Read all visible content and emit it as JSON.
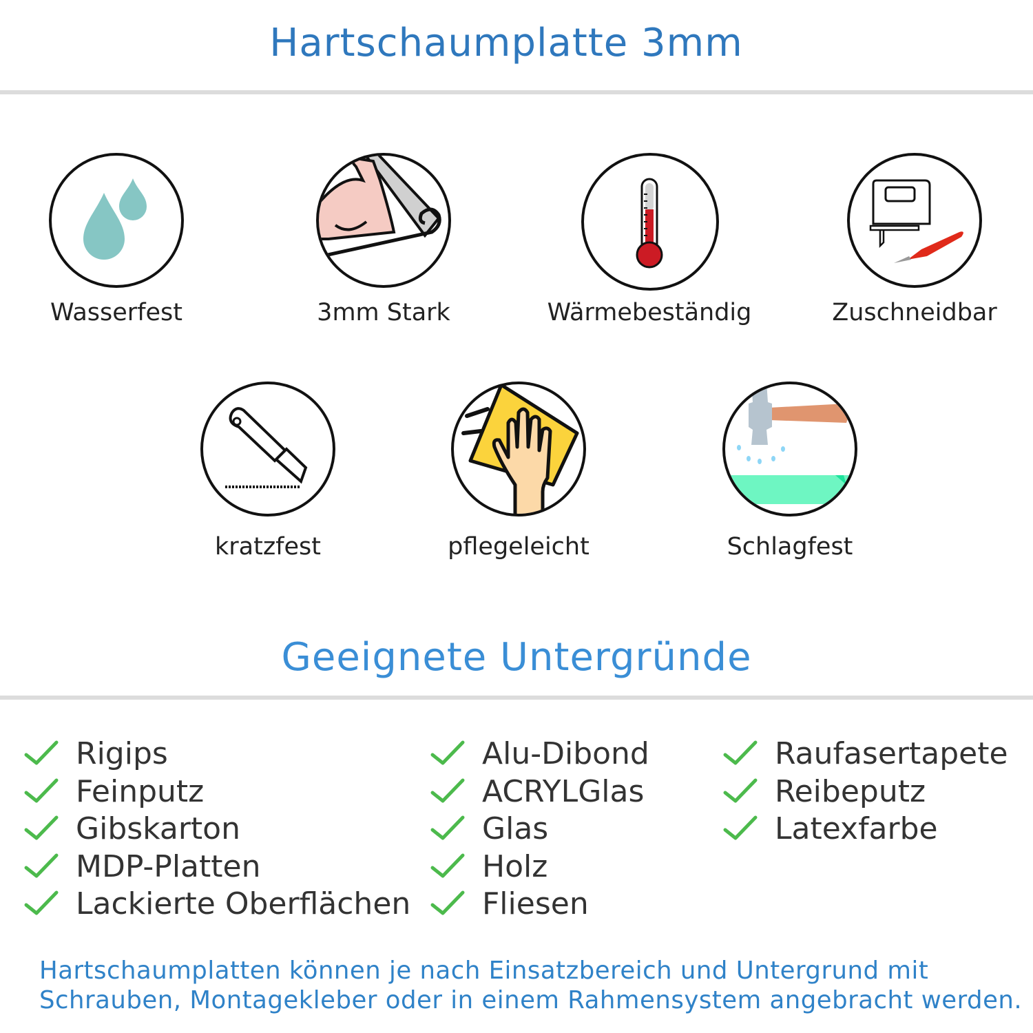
{
  "header": {
    "title": "Hartschaumplatte 3mm"
  },
  "features": [
    {
      "label": "Wasserfest",
      "icon": "water-drops-icon"
    },
    {
      "label": "3mm Stark",
      "icon": "strong-arm-icon"
    },
    {
      "label": "Wärmebeständig",
      "icon": "thermometer-icon"
    },
    {
      "label": "Zuschneidbar",
      "icon": "jigsaw-cutter-icon"
    },
    {
      "label": "kratzfest",
      "icon": "utility-knife-icon"
    },
    {
      "label": "pflegeleicht",
      "icon": "cleaning-hand-icon"
    },
    {
      "label": "Schlagfest",
      "icon": "hammer-icon"
    }
  ],
  "surfaces": {
    "title": "Geeignete Untergründe",
    "check_color": "#4cba4c",
    "columns": [
      [
        "Rigips",
        "Feinputz",
        "Gibskarton",
        "MDP-Platten",
        "Lackierte Oberflächen"
      ],
      [
        "Alu-Dibond",
        "ACRYLGlas",
        "Glas",
        "Holz",
        "Fliesen"
      ],
      [
        "Raufasertapete",
        "Reibeputz",
        "Latexfarbe"
      ]
    ]
  },
  "footer": {
    "line1": "Hartschaumplatten können je nach Einsatzbereich und Untergrund mit",
    "line2": "Schrauben, Montagekleber oder in einem Rahmensystem angebracht werden."
  },
  "colors": {
    "title": "#2f78bd",
    "accent": "#3a8ed6"
  }
}
